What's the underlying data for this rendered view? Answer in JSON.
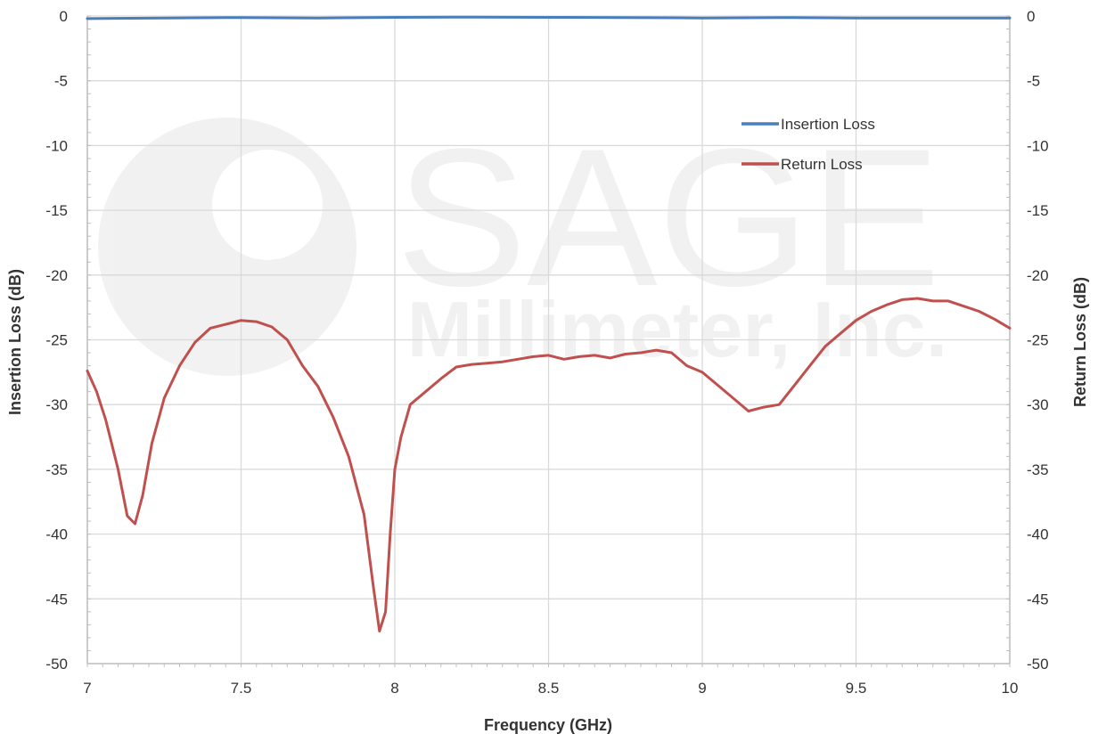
{
  "chart_data": {
    "type": "line",
    "xlabel": "Frequency (GHz)",
    "ylabel_left": "Insertion Loss (dB)",
    "ylabel_right": "Return Loss (dB)",
    "xlim": [
      7,
      10
    ],
    "ylim": [
      -50,
      0
    ],
    "x_ticks": [
      "7",
      "7.5",
      "8",
      "8.5",
      "9",
      "9.5",
      "10"
    ],
    "y_ticks": [
      "0",
      "-5",
      "-10",
      "-15",
      "-20",
      "-25",
      "-30",
      "-35",
      "-40",
      "-45",
      "-50"
    ],
    "grid": true,
    "legend_position": "top-right",
    "series": [
      {
        "name": "Insertion Loss",
        "color": "#4a7ebb",
        "x": [
          7.0,
          7.25,
          7.5,
          7.75,
          8.0,
          8.25,
          8.5,
          8.75,
          9.0,
          9.25,
          9.5,
          9.75,
          10.0
        ],
        "y": [
          -0.2,
          -0.15,
          -0.12,
          -0.15,
          -0.1,
          -0.08,
          -0.1,
          -0.12,
          -0.15,
          -0.12,
          -0.15,
          -0.15,
          -0.15
        ]
      },
      {
        "name": "Return Loss",
        "color": "#c0504d",
        "x": [
          7.0,
          7.03,
          7.06,
          7.1,
          7.13,
          7.155,
          7.18,
          7.21,
          7.25,
          7.3,
          7.35,
          7.4,
          7.45,
          7.5,
          7.55,
          7.6,
          7.65,
          7.7,
          7.75,
          7.8,
          7.85,
          7.9,
          7.93,
          7.95,
          7.97,
          7.985,
          8.0,
          8.02,
          8.05,
          8.1,
          8.15,
          8.2,
          8.25,
          8.3,
          8.35,
          8.4,
          8.45,
          8.5,
          8.55,
          8.6,
          8.65,
          8.7,
          8.75,
          8.8,
          8.85,
          8.9,
          8.95,
          9.0,
          9.05,
          9.1,
          9.15,
          9.2,
          9.25,
          9.3,
          9.35,
          9.4,
          9.45,
          9.5,
          9.55,
          9.6,
          9.65,
          9.7,
          9.75,
          9.8,
          9.85,
          9.9,
          9.95,
          10.0
        ],
        "y": [
          -27.4,
          -29.0,
          -31.2,
          -35.0,
          -38.6,
          -39.2,
          -37.0,
          -33.0,
          -29.5,
          -27.0,
          -25.2,
          -24.1,
          -23.8,
          -23.5,
          -23.6,
          -24.0,
          -25.0,
          -27.0,
          -28.6,
          -31.0,
          -34.0,
          -38.5,
          -44.0,
          -47.5,
          -46.0,
          -40.0,
          -35.0,
          -32.5,
          -30.0,
          -29.0,
          -28.0,
          -27.1,
          -26.9,
          -26.8,
          -26.7,
          -26.5,
          -26.3,
          -26.2,
          -26.5,
          -26.3,
          -26.2,
          -26.4,
          -26.1,
          -26.0,
          -25.8,
          -26.0,
          -27.0,
          -27.5,
          -28.5,
          -29.5,
          -30.5,
          -30.2,
          -30.0,
          -28.5,
          -27.0,
          -25.5,
          -24.5,
          -23.5,
          -22.8,
          -22.3,
          -21.9,
          -21.8,
          -22.0,
          -22.0,
          -22.4,
          -22.8,
          -23.4,
          -24.1
        ]
      }
    ]
  },
  "watermark": {
    "line1": "SAGE",
    "line2": "Millimeter, Inc."
  }
}
